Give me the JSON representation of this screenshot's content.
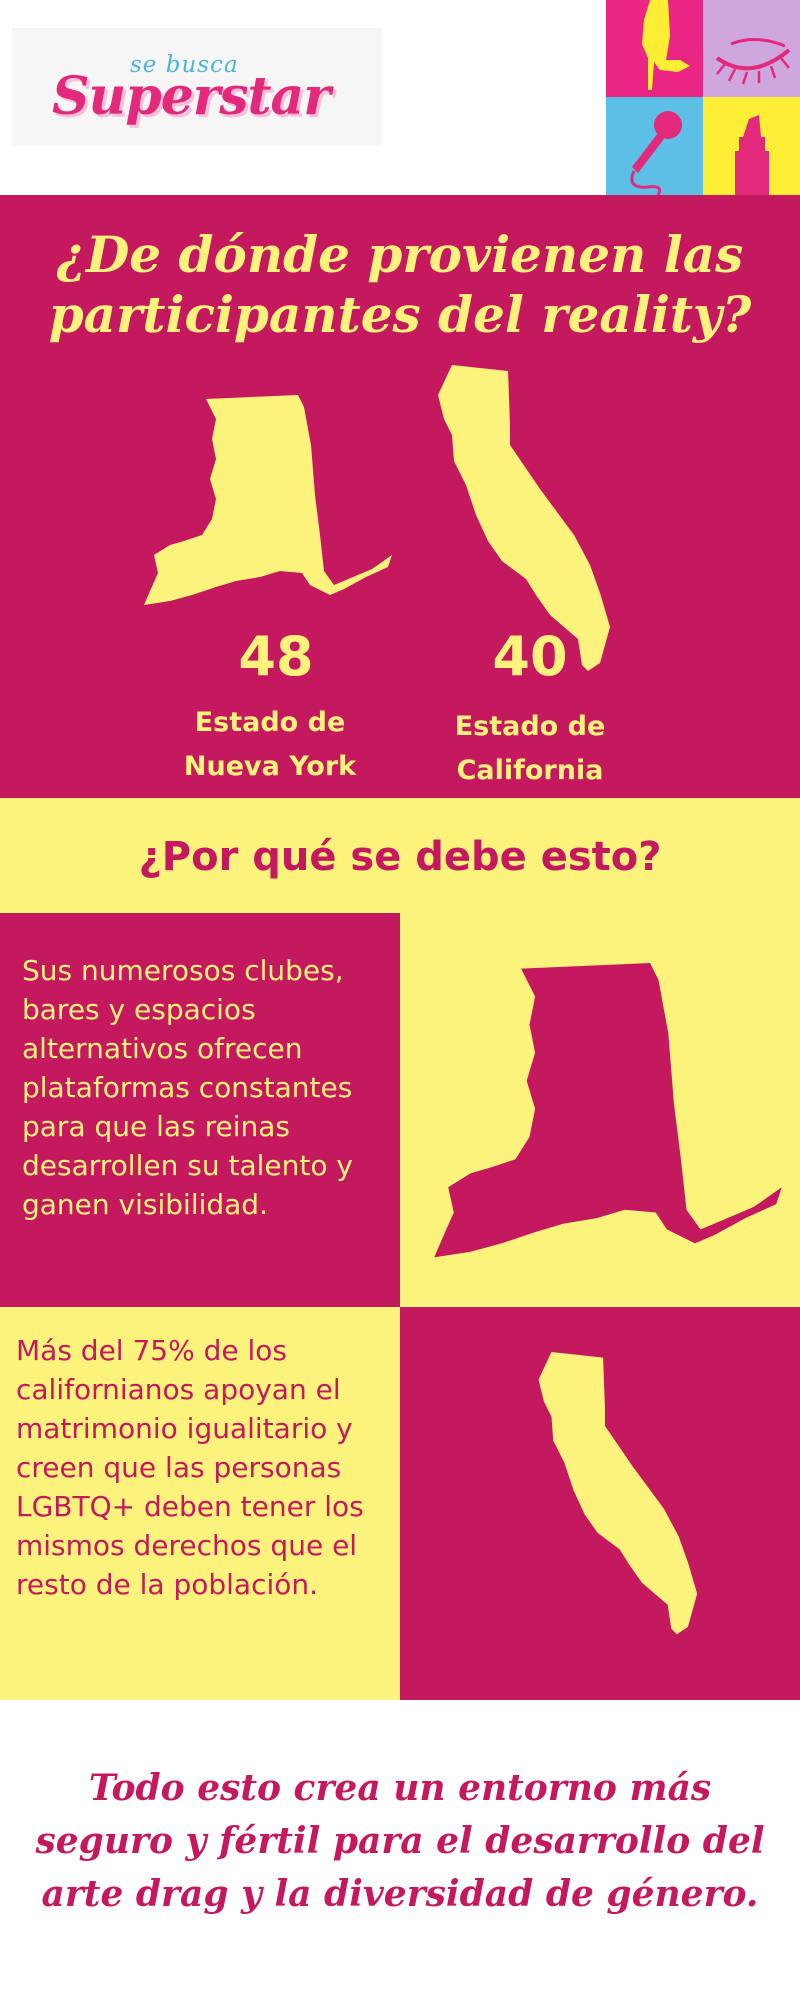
{
  "brand": {
    "tagline": "se busca",
    "name": "Superstar"
  },
  "header_tiles": [
    {
      "icon": "high-heel-icon",
      "color": "#ea2583"
    },
    {
      "icon": "eyelash-icon",
      "color": "#cfa6dd"
    },
    {
      "icon": "microphone-icon",
      "color": "#5cbfe6"
    },
    {
      "icon": "lipstick-icon",
      "color": "#fbee35"
    }
  ],
  "origins": {
    "title": "¿De dónde provienen las participantes del reality?",
    "states": [
      {
        "count": "48",
        "label": "Estado de\nNueva York",
        "icon": "new-york-map-icon"
      },
      {
        "count": "40",
        "label": "Estado de\nCalifornia",
        "icon": "california-map-icon"
      }
    ]
  },
  "reasons": {
    "title": "¿Por qué se debe esto?",
    "new_york": "Sus numerosos clubes, bares y espacios alternativos ofrecen plataformas constantes para que las reinas desarrollen su talento y ganen visibilidad.",
    "california": "Más del 75% de los californianos apoyan el matrimonio igualitario y creen que las personas LGBTQ+ deben tener los mismos derechos que el resto de la población."
  },
  "closing": "Todo esto crea un entorno más seguro y fértil para el desarrollo del arte drag y la diversidad de género.",
  "colors": {
    "magenta": "#c4195f",
    "yellow": "#fbf37b",
    "pink": "#e2297c",
    "sky": "#4bb3dc"
  }
}
